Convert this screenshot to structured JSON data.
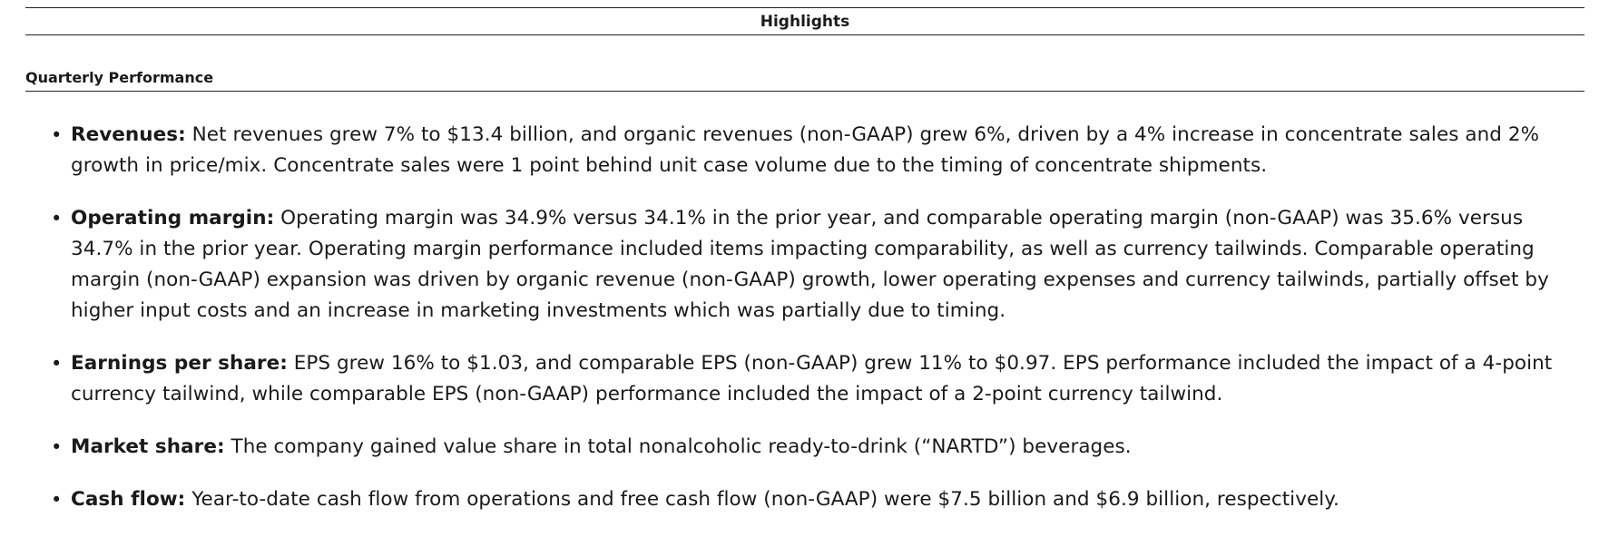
{
  "highlights_title": "Highlights",
  "quarterly_subheading": "Quarterly Performance",
  "bullets": [
    {
      "lead": "Revenues:",
      "text": " Net revenues grew 7% to $13.4 billion, and organic revenues (non-GAAP) grew 6%, driven by a 4% increase in concentrate sales and 2% growth in price/mix. Concentrate sales were 1 point behind unit case volume due to the timing of concentrate shipments."
    },
    {
      "lead": "Operating margin:",
      "text": " Operating margin was 34.9% versus 34.1% in the prior year, and comparable operating margin (non-GAAP) was 35.6% versus 34.7% in the prior year. Operating margin performance included items impacting comparability, as well as currency tailwinds. Comparable operating margin (non-GAAP) expansion was driven by organic revenue (non-GAAP) growth, lower operating expenses and currency tailwinds, partially offset by higher input costs and an increase in marketing investments which was partially due to timing."
    },
    {
      "lead": "Earnings per share:",
      "text": " EPS grew 16% to $1.03, and comparable EPS (non-GAAP) grew 11% to $0.97. EPS performance included the impact of a 4-point currency tailwind, while comparable EPS (non-GAAP) performance included the impact of a 2-point currency tailwind."
    },
    {
      "lead": "Market share:",
      "text": " The company gained value share in total nonalcoholic ready-to-drink (“NARTD”) beverages."
    },
    {
      "lead": "Cash flow:",
      "text": " Year-to-date cash flow from operations and free cash flow (non-GAAP) were $7.5 billion and $6.9 billion, respectively."
    }
  ]
}
